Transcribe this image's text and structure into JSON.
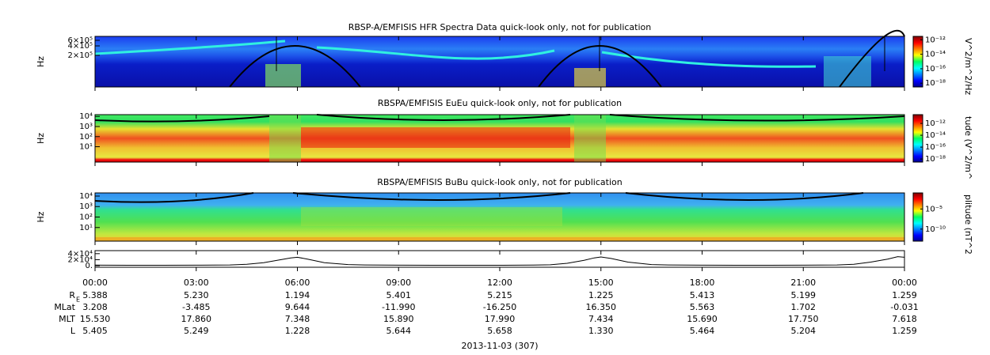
{
  "chart_data": [
    {
      "type": "spectrogram",
      "title": "RBSP-A/EMFISIS  HFR Spectra Data quick-look only, not for publication",
      "ylabel": "Hz",
      "log_y": true,
      "ylim": [
        20000,
        800000
      ],
      "yticks": [
        {
          "value": 200000,
          "label": "2×10⁵"
        },
        {
          "value": 400000,
          "label": "4×10⁵"
        },
        {
          "value": 600000,
          "label": "6×10⁵"
        }
      ],
      "colorbar": {
        "label": "V^2/m^2/Hz",
        "log": true,
        "clim": [
          3e-19,
          3e-12
        ],
        "ticks": [
          {
            "value": 1e-18,
            "label": "10⁻¹⁸"
          },
          {
            "value": 1e-16,
            "label": "10⁻¹⁶"
          },
          {
            "value": 1e-14,
            "label": "10⁻¹⁴"
          },
          {
            "value": 1e-12,
            "label": "10⁻¹²"
          }
        ]
      }
    },
    {
      "type": "spectrogram",
      "title": "RBSPA/EMFISIS  EuEu quick-look only, not for publication",
      "ylabel": "Hz",
      "log_y": true,
      "ylim": [
        0.3,
        15000
      ],
      "yticks": [
        {
          "value": 10,
          "label": "10¹"
        },
        {
          "value": 100,
          "label": "10²"
        },
        {
          "value": 1000,
          "label": "10³"
        },
        {
          "value": 10000,
          "label": "10⁴"
        }
      ],
      "colorbar": {
        "label": "tude (V^2/m^",
        "log": true,
        "clim": [
          3e-19,
          3e-11
        ],
        "ticks": [
          {
            "value": 1e-18,
            "label": "10⁻¹⁸"
          },
          {
            "value": 1e-16,
            "label": "10⁻¹⁶"
          },
          {
            "value": 1e-14,
            "label": "10⁻¹⁴"
          },
          {
            "value": 1e-12,
            "label": "10⁻¹²"
          }
        ]
      }
    },
    {
      "type": "spectrogram",
      "title": "RBSPA/EMFISIS  BuBu quick-look only, not for publication",
      "ylabel": "Hz",
      "log_y": true,
      "ylim": [
        0.5,
        20000
      ],
      "yticks": [
        {
          "value": 10,
          "label": "10¹"
        },
        {
          "value": 100,
          "label": "10²"
        },
        {
          "value": 1000,
          "label": "10³"
        },
        {
          "value": 10000,
          "label": "10⁴"
        }
      ],
      "colorbar": {
        "label": "plitude (nT^2",
        "log": true,
        "clim": [
          1e-13,
          0.1
        ],
        "ticks": [
          {
            "value": 1e-10,
            "label": "10⁻¹⁰"
          },
          {
            "value": 1e-05,
            "label": "10⁻⁵"
          }
        ]
      }
    },
    {
      "type": "line",
      "color": "#000000",
      "xlim": [
        0,
        24
      ],
      "ylim": [
        -5000,
        50000
      ],
      "yticks": [
        {
          "value": 0,
          "label": "0."
        },
        {
          "value": 20000,
          "label": "2×10⁴"
        },
        {
          "value": 40000,
          "label": "4×10⁴"
        }
      ],
      "x": [
        0,
        1,
        2,
        3,
        4,
        4.5,
        5,
        5.5,
        5.8,
        6,
        6.3,
        6.8,
        7.5,
        8,
        9,
        10,
        11,
        12,
        13,
        13.5,
        14,
        14.5,
        14.8,
        15,
        15.3,
        15.8,
        16.5,
        17,
        18,
        19,
        20,
        21,
        22,
        22.5,
        23,
        23.5,
        23.8,
        24
      ],
      "values": [
        2000,
        1500,
        1500,
        1800,
        2500,
        5000,
        10000,
        20000,
        26000,
        28000,
        22000,
        10000,
        4000,
        2500,
        1800,
        1500,
        1500,
        1600,
        2000,
        3000,
        8000,
        18000,
        26000,
        29000,
        24000,
        12000,
        4000,
        2500,
        1800,
        1500,
        1500,
        1800,
        2500,
        5000,
        12000,
        22000,
        30000,
        28000
      ]
    }
  ],
  "time_axis": {
    "ticks": [
      {
        "value": 0,
        "label": "00:00"
      },
      {
        "value": 3,
        "label": "03:00"
      },
      {
        "value": 6,
        "label": "06:00"
      },
      {
        "value": 9,
        "label": "09:00"
      },
      {
        "value": 12,
        "label": "12:00"
      },
      {
        "value": 15,
        "label": "15:00"
      },
      {
        "value": 18,
        "label": "18:00"
      },
      {
        "value": 21,
        "label": "21:00"
      },
      {
        "value": 24,
        "label": "00:00"
      }
    ],
    "date": "2013-11-03 (307)"
  },
  "ephemeris": {
    "rows": [
      {
        "label": "R",
        "label_sub": "E",
        "values": [
          "5.388",
          "5.230",
          "1.194",
          "5.401",
          "5.215",
          "1.225",
          "5.413",
          "5.199",
          "1.259"
        ]
      },
      {
        "label": "MLat",
        "values": [
          "3.208",
          "-3.485",
          "9.644",
          "-11.990",
          "-16.250",
          "16.350",
          "5.563",
          "1.702",
          "-0.031"
        ]
      },
      {
        "label": "MLT",
        "values": [
          "15.530",
          "17.860",
          "7.348",
          "15.890",
          "17.990",
          "7.434",
          "15.690",
          "17.750",
          "7.618"
        ]
      },
      {
        "label": "L",
        "values": [
          "5.405",
          "5.249",
          "1.228",
          "5.644",
          "5.658",
          "1.330",
          "5.464",
          "5.204",
          "1.259"
        ]
      }
    ]
  }
}
